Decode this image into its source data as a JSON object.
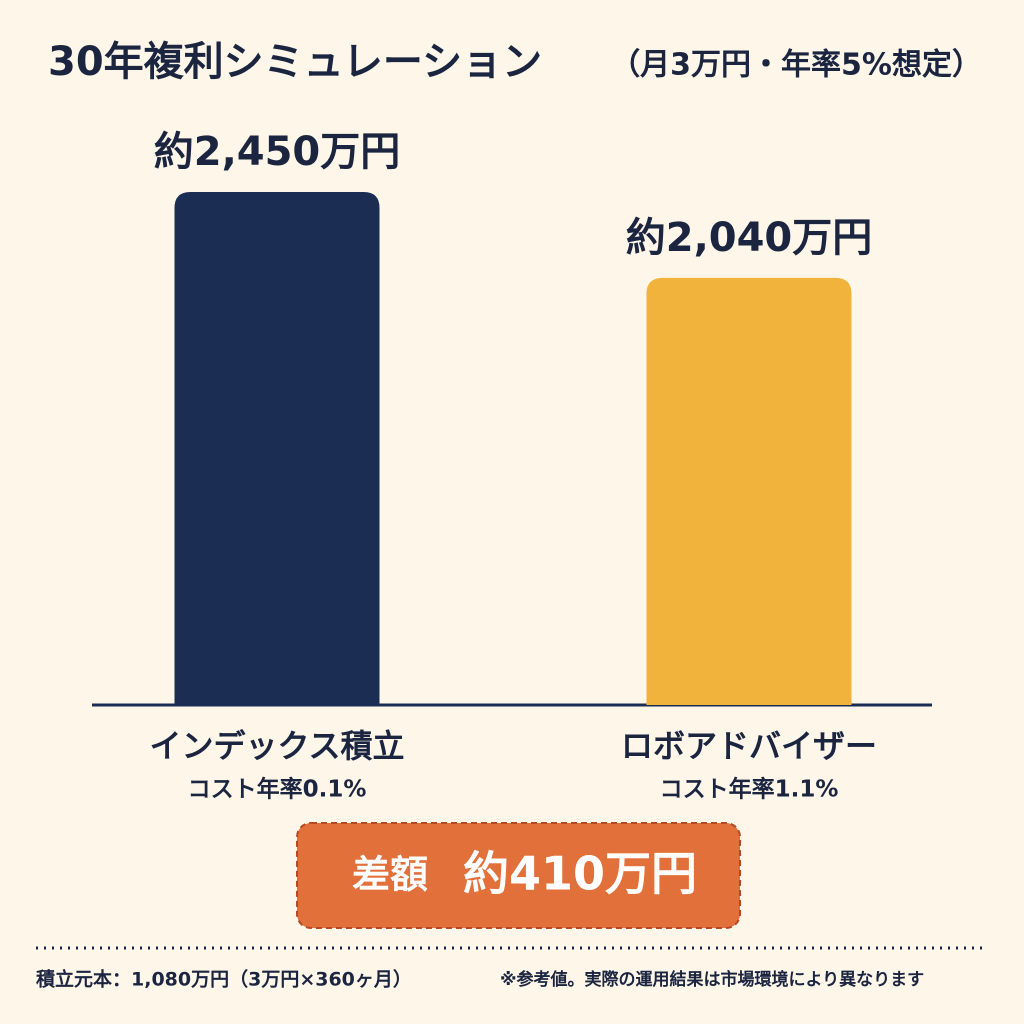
{
  "chart_data": {
    "type": "bar",
    "title": "30年複利シミュレーション",
    "subtitle": "（月3万円・年率5%想定）",
    "categories": [
      "インデックス積立",
      "ロボアドバイザー"
    ],
    "sublabels": [
      "コスト年率0.1%",
      "コスト年率1.1%"
    ],
    "values": [
      2450,
      2040
    ],
    "value_labels": [
      "約2,450万円",
      "約2,040万円"
    ],
    "colors": [
      "#1b2d52",
      "#f2b33d"
    ],
    "difference_label": "差額",
    "difference_value": "約410万円",
    "footnotes": [
      "積立元本：1,080万円（3万円×360ヶ月）",
      "※参考値。実際の運用結果は市場環境により異なります"
    ]
  }
}
